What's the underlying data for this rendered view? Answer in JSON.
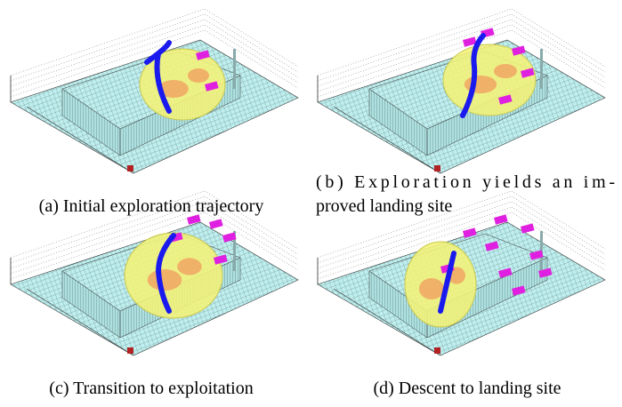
{
  "figure": {
    "panels": [
      {
        "caption_lines": [
          "(a) Initial exploration trajectory"
        ]
      },
      {
        "caption_lines": [
          "(b) Exploration yields an im-",
          "proved landing site"
        ]
      },
      {
        "caption_lines": [
          "(c) Transition to exploitation"
        ]
      },
      {
        "caption_lines": [
          "(d) Descent to landing site"
        ]
      }
    ]
  }
}
